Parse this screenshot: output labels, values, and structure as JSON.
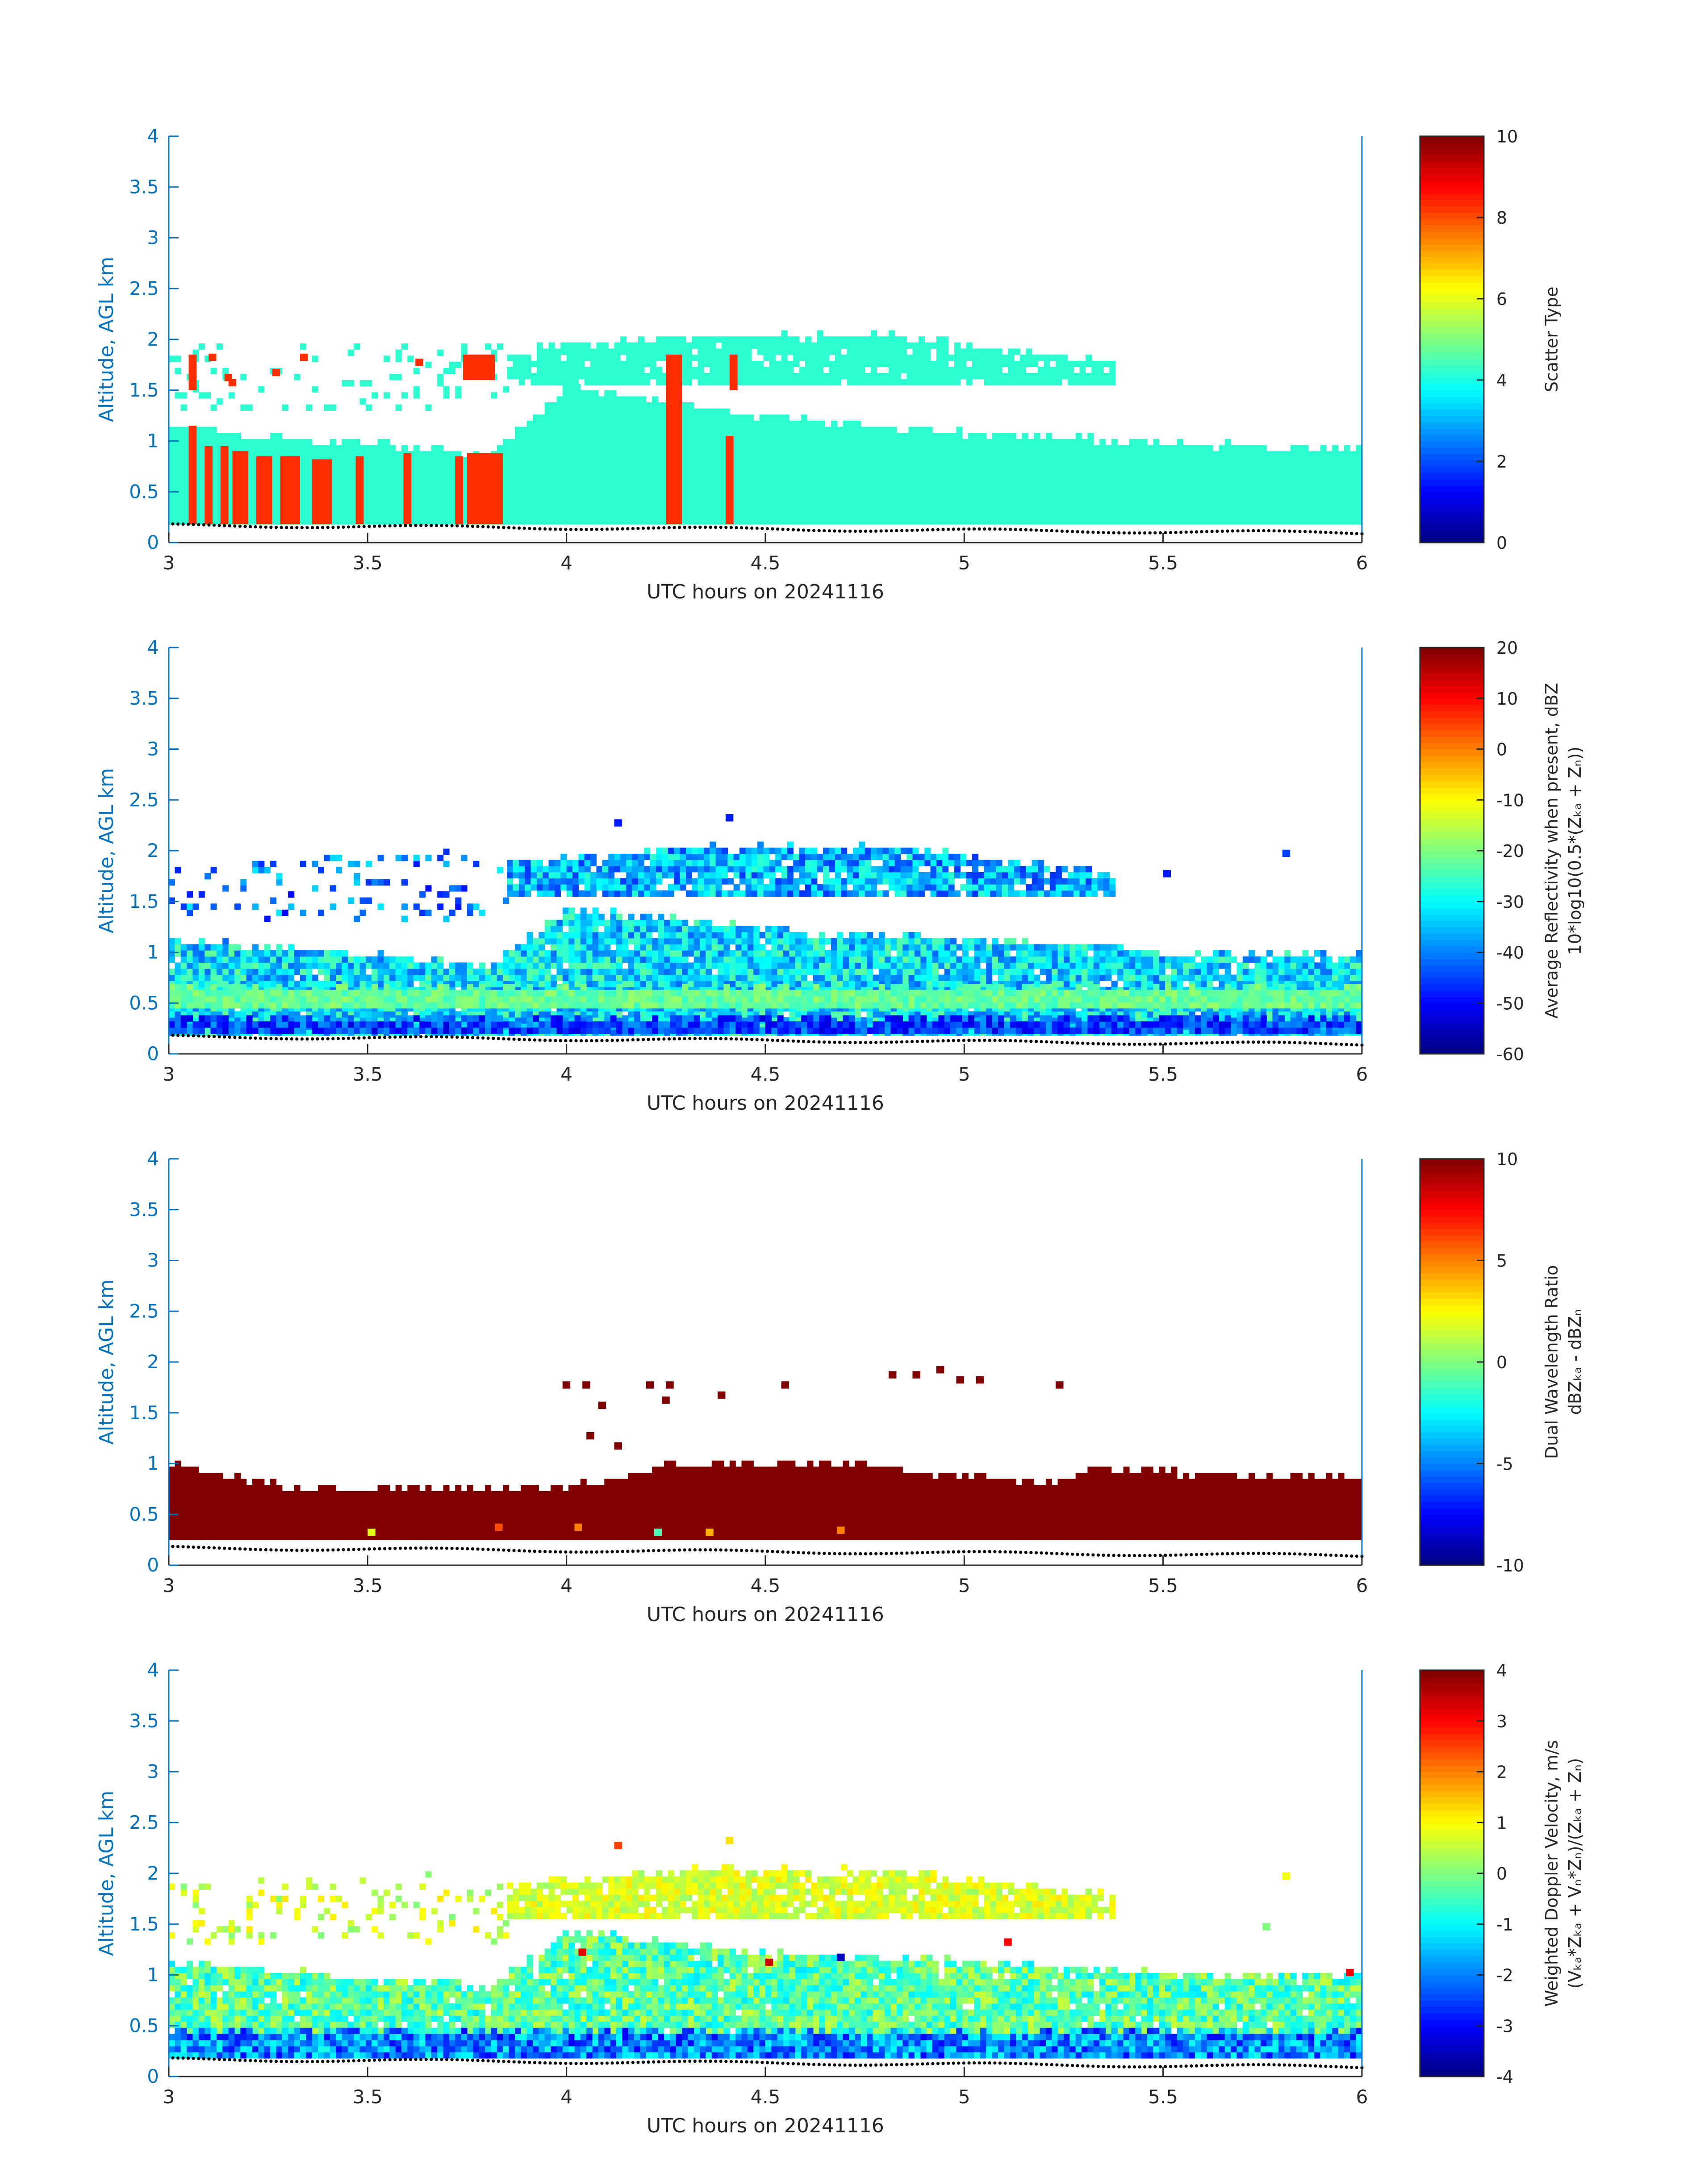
{
  "chart_data": [
    {
      "type": "heatmap",
      "xlabel": "UTC hours on 20241116",
      "ylabel": "Altitude, AGL km",
      "xlim": [
        3,
        6
      ],
      "ylim": [
        0,
        4
      ],
      "xticks": [
        "3",
        "3.5",
        "4",
        "4.5",
        "5",
        "5.5",
        "6"
      ],
      "yticks": [
        "0",
        "0.5",
        "1",
        "1.5",
        "2",
        "2.5",
        "3",
        "3.5",
        "4"
      ],
      "colorbar": {
        "label_lines": [
          "Scatter Type"
        ],
        "range": [
          0,
          10
        ],
        "ticks": [
          "0",
          "2",
          "4",
          "6",
          "8",
          "10"
        ],
        "colormap": "jet"
      },
      "layers": [
        {
          "x_start": 3.0,
          "x_end": 6.0,
          "y_base": 0.18,
          "y_top_at": [
            [
              3.0,
              1.1
            ],
            [
              3.8,
              0.85
            ],
            [
              4.0,
              1.5
            ],
            [
              4.5,
              1.2
            ],
            [
              5.0,
              1.05
            ],
            [
              5.5,
              0.95
            ],
            [
              6.0,
              0.88
            ]
          ],
          "value": 4.2,
          "spread": 0,
          "density": 1.0
        },
        {
          "x_start": 3.85,
          "x_end": 5.37,
          "y_base": 1.55,
          "y_top_at": [
            [
              3.85,
              1.85
            ],
            [
              4.3,
              2.0
            ],
            [
              4.8,
              2.0
            ],
            [
              5.37,
              1.75
            ]
          ],
          "value": 4.2,
          "spread": 0,
          "density": 0.9
        },
        {
          "x_start": 3.0,
          "x_end": 3.85,
          "y_base": 1.3,
          "y_top_at": [
            [
              3.0,
              1.9
            ],
            [
              3.85,
              1.95
            ]
          ],
          "value": 4.2,
          "spread": 0,
          "density": 0.12
        }
      ],
      "highlights": [
        {
          "x": [
            3.05,
            3.07
          ],
          "y": [
            0.18,
            1.15
          ],
          "value": 8.3
        },
        {
          "x": [
            3.09,
            3.11
          ],
          "y": [
            0.18,
            0.95
          ],
          "value": 8.3
        },
        {
          "x": [
            3.13,
            3.15
          ],
          "y": [
            0.18,
            0.95
          ],
          "value": 8.3
        },
        {
          "x": [
            3.16,
            3.2
          ],
          "y": [
            0.18,
            0.9
          ],
          "value": 8.3
        },
        {
          "x": [
            3.22,
            3.26
          ],
          "y": [
            0.18,
            0.85
          ],
          "value": 8.3
        },
        {
          "x": [
            3.28,
            3.33
          ],
          "y": [
            0.18,
            0.85
          ],
          "value": 8.3
        },
        {
          "x": [
            3.36,
            3.41
          ],
          "y": [
            0.18,
            0.82
          ],
          "value": 8.3
        },
        {
          "x": [
            3.47,
            3.49
          ],
          "y": [
            0.18,
            0.85
          ],
          "value": 8.3
        },
        {
          "x": [
            3.59,
            3.61
          ],
          "y": [
            0.18,
            0.88
          ],
          "value": 8.3
        },
        {
          "x": [
            3.72,
            3.74
          ],
          "y": [
            0.18,
            0.85
          ],
          "value": 8.3
        },
        {
          "x": [
            3.75,
            3.84
          ],
          "y": [
            0.18,
            0.88
          ],
          "value": 8.3
        },
        {
          "x": [
            4.25,
            4.29
          ],
          "y": [
            0.18,
            1.85
          ],
          "value": 8.3
        },
        {
          "x": [
            4.4,
            4.42
          ],
          "y": [
            0.18,
            1.05
          ],
          "value": 8.3
        },
        {
          "x": [
            4.41,
            4.43
          ],
          "y": [
            1.5,
            1.85
          ],
          "value": 8.3
        },
        {
          "x": [
            3.05,
            3.07
          ],
          "y": [
            1.5,
            1.85
          ],
          "value": 8.3
        },
        {
          "x": [
            3.74,
            3.82
          ],
          "y": [
            1.6,
            1.85
          ],
          "value": 8.3
        }
      ],
      "sparse_cells": [
        [
          3.1,
          1.8,
          8.3
        ],
        [
          3.15,
          1.55,
          8.3
        ],
        [
          3.33,
          1.8,
          8.3
        ],
        [
          3.26,
          1.65,
          8.3
        ],
        [
          3.14,
          1.6,
          8.3
        ],
        [
          3.62,
          1.75,
          8.3
        ]
      ],
      "surface_dots": true
    },
    {
      "type": "heatmap",
      "xlabel": "UTC hours on 20241116",
      "ylabel": "Altitude, AGL km",
      "xlim": [
        3,
        6
      ],
      "ylim": [
        0,
        4
      ],
      "xticks": [
        "3",
        "3.5",
        "4",
        "4.5",
        "5",
        "5.5",
        "6"
      ],
      "yticks": [
        "0",
        "0.5",
        "1",
        "1.5",
        "2",
        "2.5",
        "3",
        "3.5",
        "4"
      ],
      "colorbar": {
        "label_lines": [
          "Average Reflectivity when present, dBZ",
          "10*log10(0.5*(Zₖₐ + Zₙ))"
        ],
        "range": [
          -60,
          20
        ],
        "ticks": [
          "-60",
          "-50",
          "-40",
          "-30",
          "-20",
          "-10",
          "0",
          "10",
          "20"
        ],
        "colormap": "jet"
      },
      "layers": [
        {
          "x_start": 3.0,
          "x_end": 6.0,
          "y_base": 0.18,
          "y_top_at": [
            [
              3.0,
              1.1
            ],
            [
              3.8,
              0.85
            ],
            [
              4.0,
              1.4
            ],
            [
              4.5,
              1.2
            ],
            [
              5.0,
              1.1
            ],
            [
              5.5,
              0.98
            ],
            [
              6.0,
              0.95
            ]
          ],
          "value": -32,
          "spread": 10,
          "density": 0.97
        },
        {
          "x_start": 3.0,
          "x_end": 6.0,
          "y_base": 0.45,
          "y_top_at": [
            [
              3.0,
              0.62
            ],
            [
              6.0,
              0.62
            ]
          ],
          "value": -22,
          "spread": 4,
          "density": 1.0
        },
        {
          "x_start": 3.0,
          "x_end": 6.0,
          "y_base": 0.2,
          "y_top_at": [
            [
              3.0,
              0.33
            ],
            [
              6.0,
              0.33
            ]
          ],
          "value": -45,
          "spread": 8,
          "density": 0.95
        },
        {
          "x_start": 3.85,
          "x_end": 5.37,
          "y_base": 1.55,
          "y_top_at": [
            [
              3.85,
              1.85
            ],
            [
              4.3,
              2.0
            ],
            [
              4.8,
              2.0
            ],
            [
              5.37,
              1.75
            ]
          ],
          "value": -36,
          "spread": 10,
          "density": 0.9
        },
        {
          "x_start": 3.0,
          "x_end": 3.85,
          "y_base": 1.3,
          "y_top_at": [
            [
              3.0,
              1.9
            ],
            [
              3.85,
              1.95
            ]
          ],
          "value": -40,
          "spread": 10,
          "density": 0.15
        }
      ],
      "highlights": [],
      "sparse_cells": [
        [
          5.8,
          1.95,
          -45
        ],
        [
          5.5,
          1.75,
          -48
        ],
        [
          4.12,
          2.25,
          -48
        ],
        [
          4.4,
          2.3,
          -48
        ]
      ],
      "surface_dots": true
    },
    {
      "type": "heatmap",
      "xlabel": "UTC hours on 20241116",
      "ylabel": "Altitude, AGL km",
      "xlim": [
        3,
        6
      ],
      "ylim": [
        0,
        4
      ],
      "xticks": [
        "3",
        "3.5",
        "4",
        "4.5",
        "5",
        "5.5",
        "6"
      ],
      "yticks": [
        "0",
        "0.5",
        "1",
        "1.5",
        "2",
        "2.5",
        "3",
        "3.5",
        "4"
      ],
      "colorbar": {
        "label_lines": [
          "Dual Wavelength Ratio",
          "dBZₖₐ - dBZₙ"
        ],
        "range": [
          -10,
          10
        ],
        "ticks": [
          "-10",
          "-5",
          "0",
          "5",
          "10"
        ],
        "colormap": "jet"
      },
      "layers": [
        {
          "x_start": 3.0,
          "x_end": 6.0,
          "y_base": 0.25,
          "y_top_at": [
            [
              3.0,
              0.95
            ],
            [
              3.15,
              0.85
            ],
            [
              3.3,
              0.72
            ],
            [
              3.85,
              0.72
            ],
            [
              4.0,
              0.75
            ],
            [
              4.25,
              0.95
            ],
            [
              4.65,
              0.98
            ],
            [
              5.0,
              0.85
            ],
            [
              5.25,
              0.8
            ],
            [
              5.3,
              0.92
            ],
            [
              5.8,
              0.85
            ],
            [
              6.0,
              0.82
            ]
          ],
          "value": 10,
          "spread": 0,
          "density": 1.0
        }
      ],
      "highlights": [],
      "sparse_cells": [
        [
          3.99,
          1.75,
          10
        ],
        [
          4.04,
          1.75,
          10
        ],
        [
          4.08,
          1.55,
          10
        ],
        [
          4.05,
          1.25,
          10
        ],
        [
          4.12,
          1.15,
          10
        ],
        [
          4.2,
          1.75,
          10
        ],
        [
          4.25,
          1.75,
          10
        ],
        [
          4.24,
          1.6,
          10
        ],
        [
          4.38,
          1.65,
          10
        ],
        [
          4.54,
          1.75,
          10
        ],
        [
          4.81,
          1.85,
          10
        ],
        [
          4.87,
          1.85,
          10
        ],
        [
          4.93,
          1.9,
          10
        ],
        [
          4.98,
          1.8,
          10
        ],
        [
          5.03,
          1.8,
          10
        ],
        [
          5.23,
          1.75,
          10
        ],
        [
          4.02,
          0.35,
          5
        ],
        [
          4.35,
          0.3,
          4
        ],
        [
          3.5,
          0.3,
          2
        ],
        [
          3.82,
          0.35,
          6
        ],
        [
          4.68,
          0.32,
          5
        ],
        [
          4.22,
          0.3,
          -1
        ]
      ],
      "surface_dots": true
    },
    {
      "type": "heatmap",
      "xlabel": "UTC hours on 20241116",
      "ylabel": "Altitude, AGL km",
      "xlim": [
        3,
        6
      ],
      "ylim": [
        0,
        4
      ],
      "xticks": [
        "3",
        "3.5",
        "4",
        "4.5",
        "5",
        "5.5",
        "6"
      ],
      "yticks": [
        "0",
        "0.5",
        "1",
        "1.5",
        "2",
        "2.5",
        "3",
        "3.5",
        "4"
      ],
      "colorbar": {
        "label_lines": [
          "Weighted Doppler Velocity, m/s",
          "(Vₖₐ*Zₖₐ + Vₙ*Zₙ)/(Zₖₐ + Zₙ)"
        ],
        "range": [
          -4,
          4
        ],
        "ticks": [
          "-4",
          "-3",
          "-2",
          "-1",
          "0",
          "1",
          "2",
          "3",
          "4"
        ],
        "colormap": "jet"
      },
      "layers": [
        {
          "x_start": 3.0,
          "x_end": 6.0,
          "y_base": 0.18,
          "y_top_at": [
            [
              3.0,
              1.1
            ],
            [
              3.8,
              0.85
            ],
            [
              4.0,
              1.4
            ],
            [
              4.5,
              1.2
            ],
            [
              5.0,
              1.1
            ],
            [
              5.5,
              0.98
            ],
            [
              6.0,
              0.95
            ]
          ],
          "value": -0.3,
          "spread": 0.9,
          "density": 0.97
        },
        {
          "x_start": 3.0,
          "x_end": 6.0,
          "y_base": 0.18,
          "y_top_at": [
            [
              3.0,
              0.42
            ],
            [
              6.0,
              0.42
            ]
          ],
          "value": -1.9,
          "spread": 1.1,
          "density": 1.0
        },
        {
          "x_start": 3.85,
          "x_end": 5.37,
          "y_base": 1.55,
          "y_top_at": [
            [
              3.85,
              1.85
            ],
            [
              4.3,
              2.0
            ],
            [
              4.8,
              2.0
            ],
            [
              5.37,
              1.75
            ]
          ],
          "value": 0.7,
          "spread": 0.5,
          "density": 0.9
        },
        {
          "x_start": 3.0,
          "x_end": 3.85,
          "y_base": 1.3,
          "y_top_at": [
            [
              3.0,
              1.9
            ],
            [
              3.85,
              1.95
            ]
          ],
          "value": 0.6,
          "spread": 0.6,
          "density": 0.15
        }
      ],
      "highlights": [],
      "sparse_cells": [
        [
          4.12,
          2.25,
          2.5
        ],
        [
          4.4,
          2.3,
          1.2
        ],
        [
          5.8,
          1.95,
          0.9
        ],
        [
          5.75,
          1.45,
          0.0
        ],
        [
          4.03,
          1.2,
          3.2
        ],
        [
          4.5,
          1.1,
          3.4
        ],
        [
          5.1,
          1.3,
          3.0
        ],
        [
          5.96,
          1.0,
          3.0
        ],
        [
          4.68,
          1.15,
          -3.5
        ]
      ],
      "surface_dots": true
    }
  ]
}
